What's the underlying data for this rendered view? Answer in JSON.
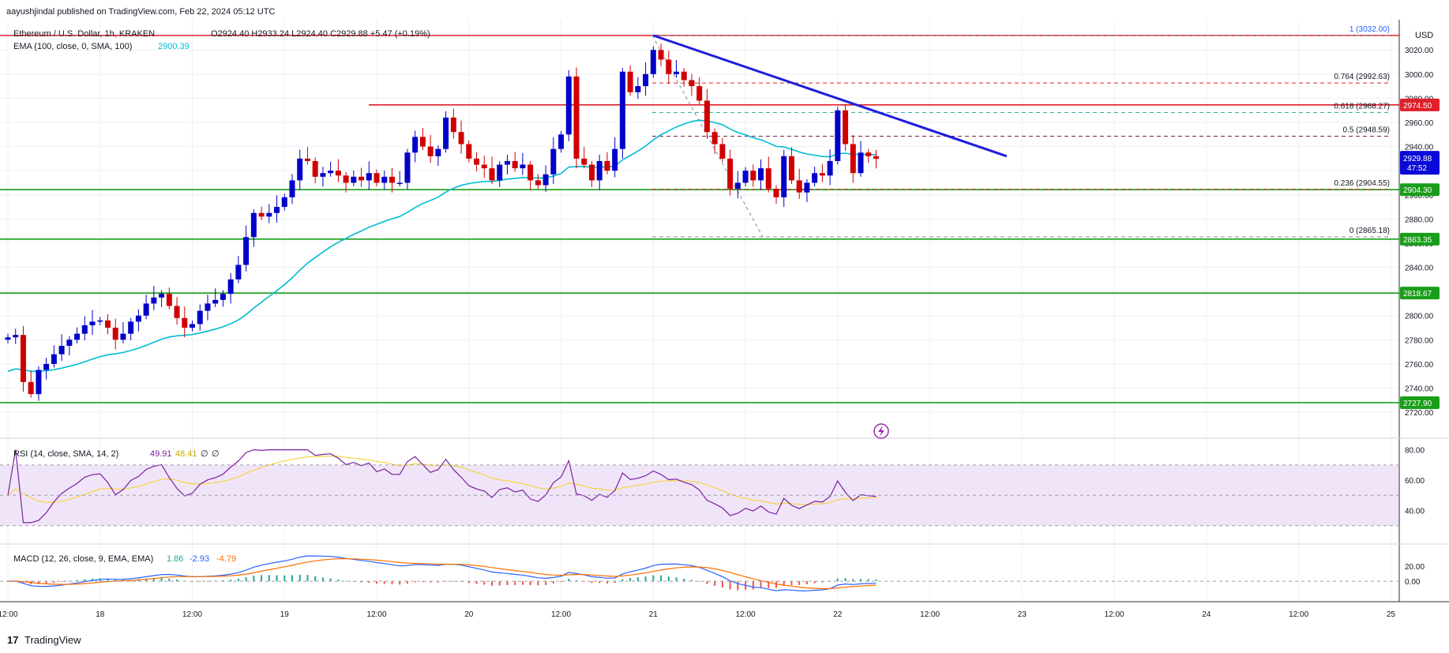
{
  "header": {
    "publisher": "aayushjindal published on TradingView.com, Feb 22, 2024 05:12 UTC"
  },
  "legend": {
    "symbol": "Ethereum / U.S. Dollar, 1h, KRAKEN",
    "ohlc": "O2924.40 H2933.24 L2924.40 C2929.88 +5.47 (+0.19%)",
    "ema_label": "EMA (100, close, 0, SMA, 100)",
    "ema_value": "2900.39",
    "rsi_label": "RSI (14, close, SMA, 14, 2)",
    "rsi_value": "49.91",
    "rsi_sma": "48.41",
    "rsi_extra1": "∅",
    "rsi_extra2": "∅",
    "macd_label": "MACD (12, 26, close, 9, EMA, EMA)",
    "macd_hist": "1.86",
    "macd_line": "-2.93",
    "macd_signal": "-4.79"
  },
  "currency": "USD",
  "footer": {
    "brand": "TradingView"
  },
  "colors": {
    "up": "#0000c8",
    "down": "#d00000",
    "ema": "#00bcd4",
    "support": "#1a9e1a",
    "resistance": "#e0202a",
    "trendline": "#1e1edc",
    "rsi": "#7b1fa2",
    "rsi_sma": "#f5d442",
    "macd": "#2962ff",
    "signal": "#ff6d00"
  },
  "chart_data": {
    "type": "candlestick",
    "price_range": [
      2705,
      3045
    ],
    "price_ticks": [
      "3020.00",
      "3000.00",
      "2980.00",
      "2960.00",
      "2940.00",
      "2920.00",
      "2900.00",
      "2880.00",
      "2860.00",
      "2840.00",
      "2820.00",
      "2800.00",
      "2780.00",
      "2760.00",
      "2740.00",
      "2720.00"
    ],
    "time_ticks": [
      {
        "label": "12:00",
        "slot": 0
      },
      {
        "label": "18",
        "slot": 12
      },
      {
        "label": "12:00",
        "slot": 24
      },
      {
        "label": "19",
        "slot": 36
      },
      {
        "label": "12:00",
        "slot": 48
      },
      {
        "label": "20",
        "slot": 60
      },
      {
        "label": "12:00",
        "slot": 72
      },
      {
        "label": "21",
        "slot": 84
      },
      {
        "label": "12:00",
        "slot": 96
      },
      {
        "label": "22",
        "slot": 108
      },
      {
        "label": "12:00",
        "slot": 120
      },
      {
        "label": "23",
        "slot": 132
      },
      {
        "label": "12:00",
        "slot": 144
      },
      {
        "label": "24",
        "slot": 156
      },
      {
        "label": "12:00",
        "slot": 168
      },
      {
        "label": "25",
        "slot": 180
      }
    ],
    "closes": [
      2782,
      2784,
      2745,
      2735,
      2755,
      2760,
      2768,
      2775,
      2780,
      2785,
      2792,
      2795,
      2796,
      2790,
      2780,
      2785,
      2795,
      2800,
      2810,
      2815,
      2818,
      2808,
      2798,
      2790,
      2793,
      2804,
      2810,
      2813,
      2818,
      2830,
      2842,
      2865,
      2885,
      2882,
      2885,
      2890,
      2898,
      2912,
      2930,
      2928,
      2915,
      2918,
      2920,
      2916,
      2910,
      2915,
      2912,
      2918,
      2910,
      2915,
      2910,
      2910,
      2935,
      2948,
      2940,
      2932,
      2938,
      2964,
      2952,
      2942,
      2930,
      2925,
      2922,
      2912,
      2925,
      2928,
      2922,
      2925,
      2912,
      2908,
      2917,
      2938,
      2950,
      2998,
      2930,
      2925,
      2912,
      2928,
      2920,
      2938,
      3002,
      2985,
      2990,
      3000,
      3020,
      3012,
      3000,
      3002,
      2995,
      2990,
      2978,
      2952,
      2942,
      2930,
      2905,
      2910,
      2920,
      2912,
      2922,
      2905,
      2898,
      2932,
      2912,
      2902,
      2910,
      2918,
      2916,
      2928,
      2970,
      2942,
      2918,
      2935,
      2932,
      2929.88
    ],
    "price_lines": [
      {
        "label": "2974.50",
        "price": 2974.5,
        "kind": "resistance"
      },
      {
        "label": "2904.30",
        "price": 2904.3,
        "kind": "support"
      },
      {
        "label": "2863.35",
        "price": 2863.35,
        "kind": "support"
      },
      {
        "label": "2818.67",
        "price": 2818.67,
        "kind": "support"
      },
      {
        "label": "2727.90",
        "price": 2727.9,
        "kind": "support"
      }
    ],
    "top_line": {
      "price": 3032.0
    },
    "current_price": {
      "label": "2929.88",
      "countdown": "47:52"
    },
    "fibonacci": [
      {
        "label": "1 (3032.00)",
        "price": 3032.0
      },
      {
        "label": "0.764 (2992.63)",
        "price": 2992.63
      },
      {
        "label": "0.618 (2968.27)",
        "price": 2968.27
      },
      {
        "label": "0.5 (2948.59)",
        "price": 2948.59
      },
      {
        "label": "0.236 (2904.55)",
        "price": 2904.55
      },
      {
        "label": "0 (2865.18)",
        "price": 2865.18
      }
    ],
    "trendline": {
      "from": {
        "slot": 84,
        "price": 3032
      },
      "to": {
        "slot": 130,
        "price": 2932
      }
    },
    "ema_start": 2752,
    "rsi_ticks": [
      "80.00",
      "60.00",
      "40.00"
    ],
    "rsi_range": [
      20,
      85
    ],
    "macd_ticks": [
      "20.00",
      "0.00"
    ],
    "macd_range": [
      -25,
      45
    ]
  }
}
